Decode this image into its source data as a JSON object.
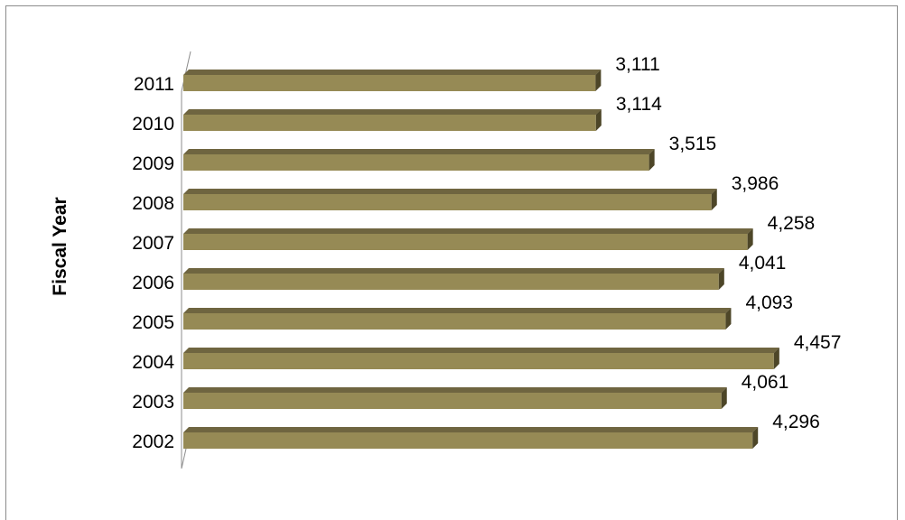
{
  "chart_data": {
    "type": "bar",
    "orientation": "horizontal",
    "style": "3d-cylinder",
    "ylabel": "Fiscal Year",
    "xlabel": "",
    "categories": [
      "2002",
      "2003",
      "2004",
      "2005",
      "2006",
      "2007",
      "2008",
      "2009",
      "2010",
      "2011"
    ],
    "values": [
      4296,
      4061,
      4457,
      4093,
      4041,
      4258,
      3986,
      3515,
      3114,
      3111
    ],
    "value_labels": [
      "4,296",
      "4,061",
      "4,457",
      "4,093",
      "4,041",
      "4,258",
      "3,986",
      "3,515",
      "3,114",
      "3,111"
    ],
    "xlim": [
      0,
      4750
    ],
    "grid": false,
    "legend": "none",
    "colors": {
      "bar_front": "#968a55",
      "bar_top": "#6f6540",
      "bar_end": "#4d4628",
      "axis": "#8c8c8c"
    }
  }
}
